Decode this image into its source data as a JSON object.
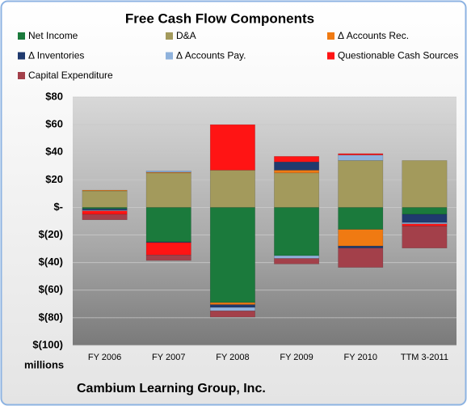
{
  "chart_data": {
    "type": "bar",
    "stacked": true,
    "title": "Free Cash Flow Components",
    "y_unit_label": "millions",
    "source": "Cambium Learning Group, Inc.",
    "categories": [
      "FY 2006",
      "FY 2007",
      "FY 2008",
      "FY 2009",
      "FY 2010",
      "TTM 3-2011"
    ],
    "series": [
      {
        "name": "Net Income",
        "color": "#1b7a3c",
        "values": [
          -1,
          -25,
          -69,
          -35,
          -16,
          -5
        ]
      },
      {
        "name": "D&A",
        "color": "#a39a5c",
        "values": [
          12,
          25,
          27,
          25,
          34,
          34
        ]
      },
      {
        "name": "Δ Accounts Rec.",
        "color": "#f07a12",
        "values": [
          0.5,
          0.5,
          -1.5,
          2,
          -12,
          0
        ]
      },
      {
        "name": "Δ Inventories",
        "color": "#1f3a6e",
        "values": [
          -1,
          -0.5,
          -2,
          6,
          -1.5,
          -6
        ]
      },
      {
        "name": "Δ Accounts Pay.",
        "color": "#8fb2dc",
        "values": [
          -0.5,
          1,
          -2.5,
          -2,
          4,
          -1
        ]
      },
      {
        "name": "Questionable Cash Sources",
        "color": "#ff1414",
        "values": [
          -2.5,
          -9,
          33,
          4,
          1,
          -1.5
        ]
      },
      {
        "name": "Capital Expenditure",
        "color": "#a3404a",
        "values": [
          -4,
          -4,
          -4.5,
          -4,
          -14,
          -16
        ]
      }
    ],
    "ylim": [
      -100,
      80
    ],
    "yticks": [
      {
        "value": -100,
        "label": "$(100)"
      },
      {
        "value": -80,
        "label": "$(80)"
      },
      {
        "value": -60,
        "label": "$(60)"
      },
      {
        "value": -40,
        "label": "$(40)"
      },
      {
        "value": -20,
        "label": "$(20)"
      },
      {
        "value": 0,
        "label": "$-"
      },
      {
        "value": 20,
        "label": "$20"
      },
      {
        "value": 40,
        "label": "$40"
      },
      {
        "value": 60,
        "label": "$60"
      },
      {
        "value": 80,
        "label": "$80"
      }
    ],
    "grid": true
  }
}
